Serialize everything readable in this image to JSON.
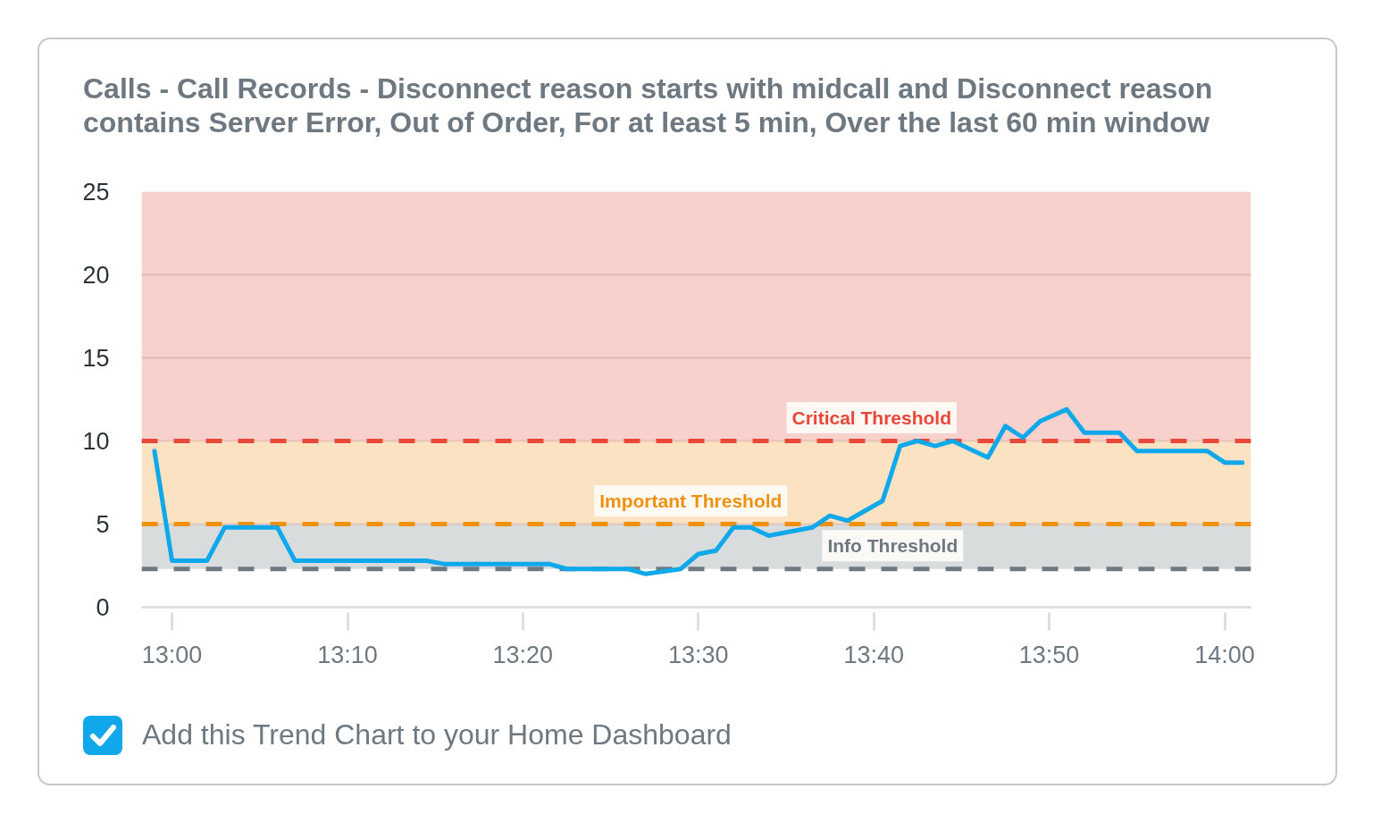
{
  "chart_data": {
    "type": "line",
    "title": "Calls - Call Records - Disconnect reason starts with midcall and Disconnect reason contains Server Error, Out of Order, For at least 5 min, Over the last 60 min window",
    "x": [
      12.9833,
      13.0,
      13.0333,
      13.05,
      13.1,
      13.1167,
      13.2417,
      13.2583,
      13.3583,
      13.375,
      13.4333,
      13.45,
      13.4833,
      13.5,
      13.5167,
      13.5333,
      13.55,
      13.5667,
      13.6083,
      13.625,
      13.6417,
      13.675,
      13.6917,
      13.7083,
      13.725,
      13.7417,
      13.775,
      13.7917,
      13.8083,
      13.825,
      13.85,
      13.8667,
      13.9,
      13.9167,
      13.9833,
      14.0,
      14.0167
    ],
    "series": [
      {
        "color": "#0fa8ea",
        "values": [
          9.4,
          2.8,
          2.8,
          4.8,
          4.8,
          2.8,
          2.8,
          2.6,
          2.6,
          2.3,
          2.3,
          2.0,
          2.3,
          3.2,
          3.4,
          4.8,
          4.8,
          4.3,
          4.8,
          5.5,
          5.2,
          6.4,
          9.7,
          10.0,
          9.7,
          10.0,
          9.0,
          10.9,
          10.2,
          11.2,
          11.9,
          10.5,
          10.5,
          9.4,
          9.4,
          8.7,
          8.7
        ]
      }
    ],
    "xlim": [
      12.9711,
      14.025
    ],
    "xticks": [
      {
        "value": 13,
        "label": "13:00"
      },
      {
        "value": 13.1667,
        "label": "13:10"
      },
      {
        "value": 13.3333,
        "label": "13:20"
      },
      {
        "value": 13.5,
        "label": "13:30"
      },
      {
        "value": 13.6667,
        "label": "13:40"
      },
      {
        "value": 13.8333,
        "label": "13:50"
      },
      {
        "value": 14,
        "label": "14:00"
      }
    ],
    "ylim": [
      0,
      25
    ],
    "yticks": [
      0,
      5,
      10,
      15,
      20,
      25
    ],
    "grid": "y",
    "bands": [
      {
        "axis": "y",
        "from": 10,
        "to": 25,
        "color": "#f8d0cc"
      },
      {
        "axis": "y",
        "from": 5,
        "to": 10,
        "color": "#fae2c3"
      },
      {
        "axis": "y",
        "from": 2.3,
        "to": 5,
        "color": "#d9dcdd"
      }
    ],
    "ref_lines": [
      {
        "axis": "y",
        "value": 10,
        "label": "Critical Threshold",
        "color": "#e8473a",
        "line_style": "dashed"
      },
      {
        "axis": "y",
        "value": 5,
        "label": "Important Threshold",
        "color": "#f0900f",
        "line_style": "dashed"
      },
      {
        "axis": "y",
        "value": 2.3,
        "label": "Info Threshold",
        "color": "#6e7880",
        "line_style": "dashed"
      }
    ],
    "annotations": [
      "Add this Trend Chart to your Home Dashboard"
    ]
  }
}
